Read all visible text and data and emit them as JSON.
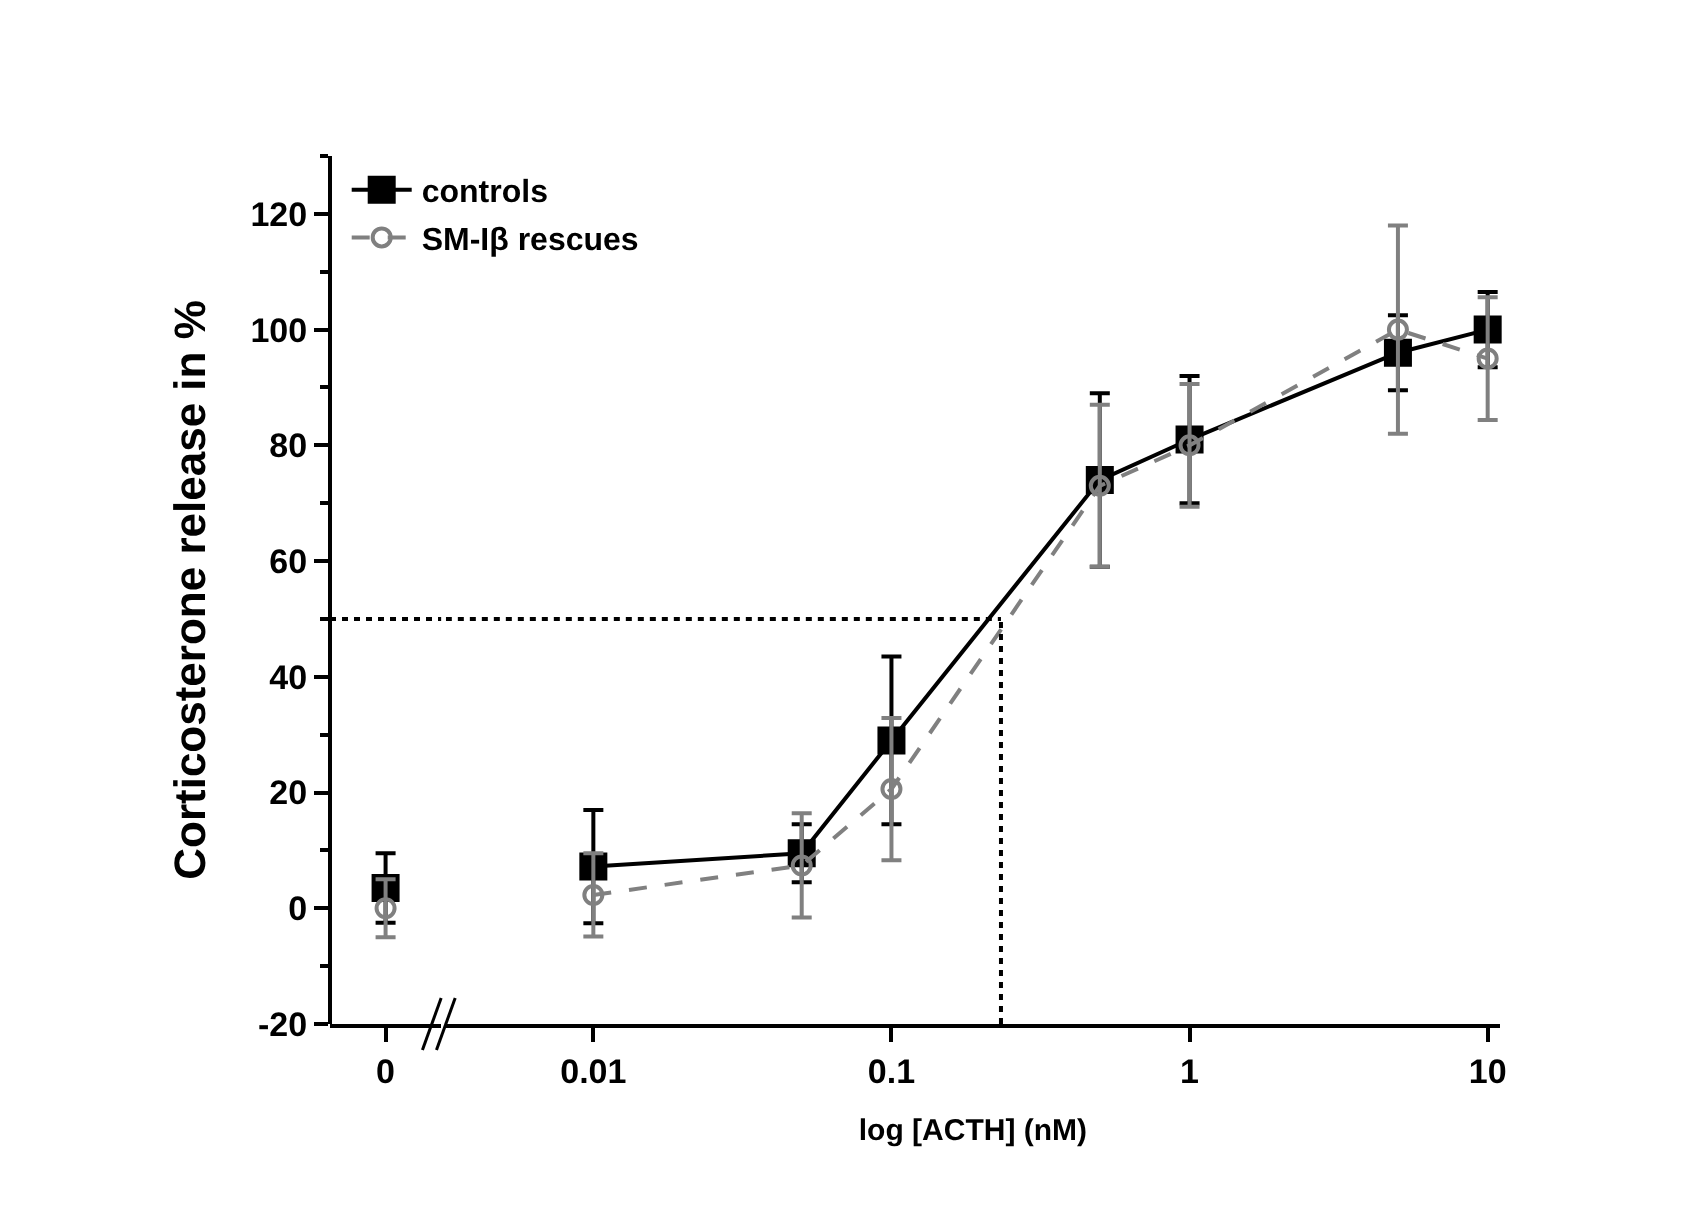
{
  "chart_data": [
    {
      "type": "line",
      "categories": [
        "0"
      ],
      "series": [
        {
          "color": "#000000",
          "marker": "square",
          "line_style": "solid",
          "values": [
            3.5
          ],
          "errors": [
            6
          ]
        },
        {
          "color": "#808080",
          "marker": "circle-open",
          "line_style": "dashed",
          "values": [
            0
          ],
          "errors": [
            5
          ]
        }
      ],
      "ylim": [
        -20,
        130
      ],
      "yticks": [
        -20,
        0,
        20,
        40,
        60,
        80,
        100,
        120
      ],
      "tick_labels": "x",
      "ref_lines": [
        {
          "axis": "y",
          "value": 50,
          "color": "#000000",
          "line_style": "dotted"
        }
      ]
    },
    {
      "type": "line",
      "xlabel": "log [ACTH] (nM)",
      "ylabel": "Corticosterone release in %",
      "x": [
        0.01,
        0.05,
        0.1,
        0.5,
        1,
        5,
        10
      ],
      "series": [
        {
          "name": "controls",
          "color": "#000000",
          "marker": "square",
          "line_style": "solid",
          "values": [
            7.2,
            9.5,
            29,
            74,
            81,
            96,
            100
          ],
          "errors": [
            9.8,
            5,
            14.5,
            15,
            11,
            6.5,
            6.5
          ]
        },
        {
          "name": "SM-Iβ rescues",
          "color": "#808080",
          "marker": "circle-open",
          "line_style": "dashed",
          "values": [
            2.3,
            7.4,
            20.6,
            73,
            80,
            100,
            95
          ],
          "errors": [
            7.2,
            9,
            12.3,
            14,
            10.6,
            18,
            10.6
          ]
        }
      ],
      "xlim": [
        0.0032,
        11
      ],
      "xticks": [
        0.01,
        0.1,
        1,
        10
      ],
      "ylim": [
        -20,
        130
      ],
      "yticks": [
        -20,
        0,
        20,
        40,
        60,
        80,
        100,
        120
      ],
      "ref_lines": [
        {
          "axis": "y",
          "value": 50,
          "color": "#000000",
          "line_style": "dotted"
        },
        {
          "axis": "x",
          "value": 0.233,
          "color": "#000000",
          "line_style": "dotted"
        }
      ],
      "log": "x",
      "legend": "top left"
    }
  ]
}
